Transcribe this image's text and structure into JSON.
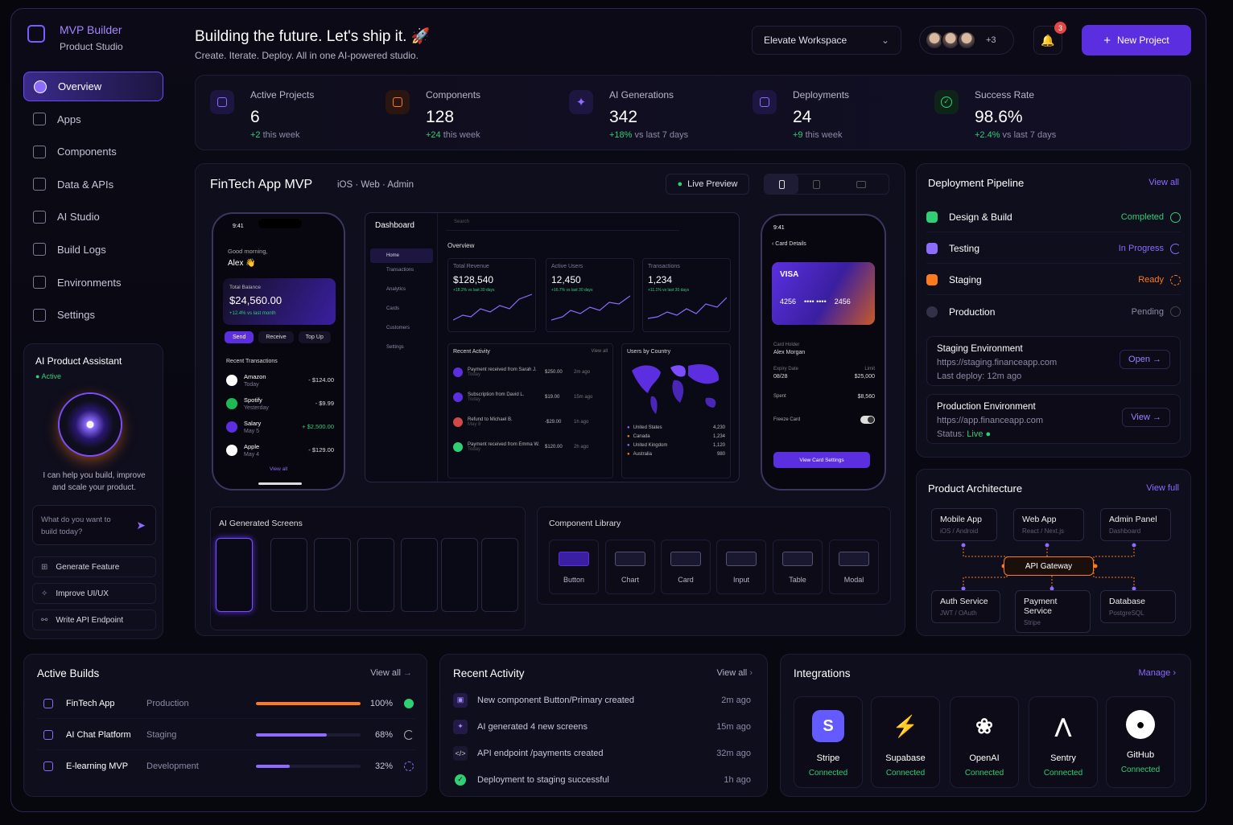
{
  "brand": {
    "name": "MVP Builder",
    "tagline": "Product Studio"
  },
  "nav": [
    {
      "label": "Overview"
    },
    {
      "label": "Apps"
    },
    {
      "label": "Components"
    },
    {
      "label": "Data & APIs"
    },
    {
      "label": "AI Studio"
    },
    {
      "label": "Build Logs"
    },
    {
      "label": "Environments"
    },
    {
      "label": "Settings"
    }
  ],
  "assistant": {
    "title": "AI Product Assistant",
    "status": "Active",
    "blurb": "I can help you build, improve and scale your product.",
    "placeholder": "What do you want to build today?",
    "actions": [
      "Generate Feature",
      "Improve UI/UX",
      "Write API Endpoint"
    ]
  },
  "header": {
    "title": "Building the future. Let's ship it. 🚀",
    "subtitle": "Create. Iterate. Deploy. All in one AI-powered studio.",
    "workspace": "Elevate Workspace",
    "extra_members": "+3",
    "notifications": "3",
    "new_project": "New Project"
  },
  "stats": [
    {
      "label": "Active Projects",
      "value": "6",
      "delta": "+2",
      "delta_text": " this week",
      "icon": "folder-icon"
    },
    {
      "label": "Components",
      "value": "128",
      "delta": "+24",
      "delta_text": " this week",
      "icon": "cube-icon"
    },
    {
      "label": "AI Generations",
      "value": "342",
      "delta": "+18%",
      "delta_text": " vs last 7 days",
      "icon": "sparkle-icon"
    },
    {
      "label": "Deployments",
      "value": "24",
      "delta": "+9",
      "delta_text": " this week",
      "icon": "rocket-icon"
    },
    {
      "label": "Success Rate",
      "value": "98.6%",
      "delta": "+2.4%",
      "delta_text": " vs last 7 days",
      "icon": "check-circle-icon"
    }
  ],
  "project": {
    "name": "FinTech App MVP",
    "platforms": "iOS · Web · Admin",
    "preview": "Live Preview",
    "phone1": {
      "time": "9:41",
      "greet": "Good morning,",
      "user": "Alex 👋",
      "balance_label": "Total Balance",
      "balance": "$24,560.00",
      "balance_delta": "+12.4% vs last month",
      "btns": [
        "Send",
        "Receive",
        "Top Up"
      ],
      "tx_title": "Recent Transactions",
      "tx": [
        {
          "n": "Amazon",
          "d": "Today",
          "a": "- $124.00"
        },
        {
          "n": "Spotify",
          "d": "Yesterday",
          "a": "- $9.99"
        },
        {
          "n": "Salary",
          "d": "May 5",
          "a": "+ $2,500.00"
        },
        {
          "n": "Apple",
          "d": "May 4",
          "a": "- $129.00"
        }
      ],
      "view_all": "View all"
    },
    "dash": {
      "title": "Dashboard",
      "search": "Search",
      "menu": [
        "Home",
        "Transactions",
        "Analytics",
        "Cards",
        "Customers",
        "Settings"
      ],
      "overview": "Overview",
      "kpis": [
        {
          "l": "Total Revenue",
          "v": "$128,540",
          "d": "+18.2% vs last 30 days"
        },
        {
          "l": "Active Users",
          "v": "12,450",
          "d": "+16.7% vs last 30 days"
        },
        {
          "l": "Transactions",
          "v": "1,234",
          "d": "+11.1% vs last 30 days"
        }
      ],
      "activity_title": "Recent Activity",
      "activity_va": "View all",
      "activity": [
        {
          "t": "Payment received from Sarah J.",
          "s": "Today",
          "a": "$250.00",
          "w": "2m ago"
        },
        {
          "t": "Subscription from David L.",
          "s": "Today",
          "a": "$19.00",
          "w": "15m ago"
        },
        {
          "t": "Refund to Michael B.",
          "s": "May 8",
          "a": "-$29.00",
          "w": "1h ago"
        },
        {
          "t": "Payment received from Emma W.",
          "s": "Today",
          "a": "$120.00",
          "w": "2h ago"
        }
      ],
      "country_title": "Users by Country",
      "countries": [
        {
          "n": "United States",
          "v": "4,230"
        },
        {
          "n": "Canada",
          "v": "1,234"
        },
        {
          "n": "United Kingdom",
          "v": "1,120"
        },
        {
          "n": "Australia",
          "v": "980"
        }
      ]
    },
    "phone2": {
      "time": "9:41",
      "title": "Card Details",
      "brand": "VISA",
      "num1": "4256",
      "mask": "•••• ••••",
      "num2": "2456",
      "holder_l": "Card Holder",
      "holder": "Alex Morgan",
      "exp_l": "Expiry Date",
      "exp": "08/28",
      "limit_l": "Limit",
      "limit": "$25,000",
      "spent_l": "Spent",
      "spent": "$8,560",
      "freeze": "Freeze Card",
      "btn": "View Card Settings"
    }
  },
  "screens": {
    "title": "AI Generated Screens"
  },
  "library": {
    "title": "Component Library",
    "items": [
      "Button",
      "Chart",
      "Card",
      "Input",
      "Table",
      "Modal"
    ]
  },
  "pipeline": {
    "title": "Deployment Pipeline",
    "view_all": "View all",
    "stages": [
      {
        "n": "Design & Build",
        "s": "Completed",
        "c": "#2fcf74"
      },
      {
        "n": "Testing",
        "s": "In Progress",
        "c": "#8d6bff"
      },
      {
        "n": "Staging",
        "s": "Ready",
        "c": "#ff7a1a"
      },
      {
        "n": "Production",
        "s": "Pending",
        "c": "#8d8aa6"
      }
    ],
    "staging": {
      "title": "Staging Environment",
      "url": "https://staging.financeapp.com",
      "meta": "Last deploy: 12m ago",
      "btn": "Open →"
    },
    "prod": {
      "title": "Production Environment",
      "url": "https://app.financeapp.com",
      "meta_l": "Status: ",
      "meta_v": "Live",
      "btn": "View →"
    }
  },
  "arch": {
    "title": "Product Architecture",
    "view": "View full",
    "gateway": "API Gateway",
    "top": [
      {
        "n": "Mobile App",
        "s": "iOS / Android"
      },
      {
        "n": "Web App",
        "s": "React / Next.js"
      },
      {
        "n": "Admin Panel",
        "s": "Dashboard"
      }
    ],
    "bottom": [
      {
        "n": "Auth Service",
        "s": "JWT / OAuth"
      },
      {
        "n": "Payment Service",
        "s": "Stripe"
      },
      {
        "n": "Database",
        "s": "PostgreSQL"
      }
    ]
  },
  "builds": {
    "title": "Active Builds",
    "view_all": "View all",
    "items": [
      {
        "n": "FinTech App",
        "e": "Production",
        "p": 1.0,
        "pl": "100%",
        "c": "#ff7a1a"
      },
      {
        "n": "AI Chat Platform",
        "e": "Staging",
        "p": 0.68,
        "pl": "68%",
        "c": "#8d6bff"
      },
      {
        "n": "E-learning MVP",
        "e": "Development",
        "p": 0.32,
        "pl": "32%",
        "c": "#8d6bff"
      }
    ]
  },
  "activity": {
    "title": "Recent Activity",
    "view_all": "View all",
    "items": [
      {
        "t": "New component Button/Primary created",
        "w": "2m ago"
      },
      {
        "t": "AI generated 4 new screens",
        "w": "15m ago"
      },
      {
        "t": "API endpoint /payments created",
        "w": "32m ago"
      },
      {
        "t": "Deployment to staging successful",
        "w": "1h ago"
      }
    ]
  },
  "integrations": {
    "title": "Integrations",
    "manage": "Manage",
    "items": [
      {
        "n": "Stripe",
        "s": "Connected"
      },
      {
        "n": "Supabase",
        "s": "Connected"
      },
      {
        "n": "OpenAI",
        "s": "Connected"
      },
      {
        "n": "Sentry",
        "s": "Connected"
      },
      {
        "n": "GitHub",
        "s": "Connected"
      }
    ]
  }
}
